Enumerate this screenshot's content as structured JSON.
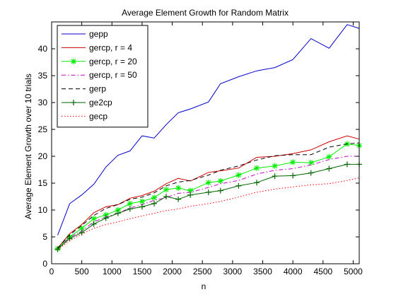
{
  "chart_data": {
    "type": "line",
    "title": "Average Element Growth for Random Matrix",
    "xlabel": "n",
    "ylabel": "Average Element Growth over 10 trials",
    "xlim": [
      0,
      5100
    ],
    "ylim": [
      0,
      45
    ],
    "xticks": [
      "0",
      "500",
      "1000",
      "1500",
      "2000",
      "2500",
      "3000",
      "3500",
      "4000",
      "4500",
      "5000"
    ],
    "yticks": [
      "0",
      "5",
      "10",
      "15",
      "20",
      "25",
      "30",
      "35",
      "40"
    ],
    "grid": false,
    "legend_position": "top-left",
    "x": [
      100,
      300,
      500,
      700,
      900,
      1100,
      1300,
      1500,
      1700,
      1900,
      2100,
      2300,
      2600,
      2800,
      3100,
      3400,
      3700,
      4000,
      4300,
      4600,
      4900,
      5100
    ],
    "series": [
      {
        "name": "gepp",
        "color": "#0000cc",
        "style": "solid",
        "marker": "none",
        "values": [
          5.3,
          11.2,
          12.8,
          14.8,
          18.0,
          20.2,
          21.0,
          23.8,
          23.4,
          25.9,
          28.1,
          28.8,
          30.1,
          33.5,
          34.8,
          35.9,
          36.5,
          38.0,
          41.9,
          40.1,
          44.5,
          43.8
        ]
      },
      {
        "name": "gercp, r = 4",
        "color": "#cc0000",
        "style": "solid",
        "marker": "none",
        "values": [
          2.9,
          5.6,
          7.3,
          9.5,
          10.6,
          11.0,
          12.2,
          12.7,
          13.5,
          14.9,
          15.9,
          15.4,
          17.0,
          17.3,
          17.8,
          19.8,
          20.0,
          20.5,
          21.2,
          22.7,
          23.8,
          23.2
        ]
      },
      {
        "name": "gercp, r = 20",
        "color": "#00ee00",
        "style": "solid",
        "marker": "star",
        "values": [
          2.8,
          5.0,
          6.6,
          8.4,
          9.1,
          10.0,
          11.2,
          11.6,
          12.3,
          13.8,
          14.1,
          13.6,
          15.1,
          15.4,
          16.5,
          17.8,
          18.2,
          18.9,
          18.8,
          19.9,
          22.3,
          22.0
        ]
      },
      {
        "name": "gercp, r = 50",
        "color": "#cc00cc",
        "style": "dashdot",
        "marker": "none",
        "values": [
          2.7,
          4.9,
          6.1,
          7.8,
          8.7,
          9.4,
          10.4,
          11.0,
          11.8,
          12.3,
          13.1,
          13.3,
          14.2,
          14.9,
          15.5,
          16.7,
          17.4,
          17.7,
          18.4,
          19.4,
          20.0,
          20.0
        ]
      },
      {
        "name": "gerp",
        "color": "#000000",
        "style": "dashed",
        "marker": "none",
        "values": [
          2.9,
          5.4,
          7.1,
          9.0,
          10.3,
          11.0,
          12.0,
          12.4,
          13.2,
          14.5,
          15.2,
          15.5,
          16.5,
          17.4,
          18.2,
          19.3,
          20.1,
          20.3,
          20.3,
          21.7,
          22.3,
          22.5
        ]
      },
      {
        "name": "ge2cp",
        "color": "#006600",
        "style": "solid",
        "marker": "plus",
        "values": [
          2.7,
          4.7,
          5.8,
          7.4,
          8.5,
          9.4,
          10.2,
          10.6,
          11.2,
          12.5,
          12.0,
          12.8,
          13.3,
          13.6,
          14.5,
          15.1,
          16.3,
          16.4,
          16.9,
          17.7,
          18.5,
          18.5
        ]
      },
      {
        "name": "gecp",
        "color": "#ff0000",
        "style": "dotted",
        "marker": "none",
        "values": [
          2.6,
          4.3,
          5.5,
          6.6,
          7.3,
          7.8,
          8.4,
          8.9,
          9.4,
          9.9,
          10.2,
          10.7,
          11.2,
          11.6,
          12.4,
          13.3,
          13.9,
          14.3,
          14.7,
          14.9,
          15.5,
          16.0
        ]
      }
    ]
  }
}
